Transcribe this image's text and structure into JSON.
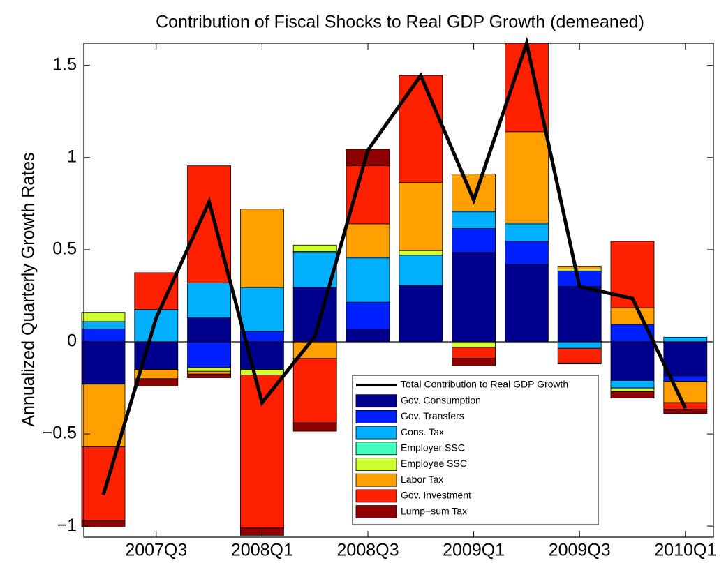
{
  "chart_data": {
    "type": "stacked-bar-line",
    "title": "Contribution of Fiscal Shocks to Real GDP Growth (demeaned)",
    "y_label": "Annualized Quarterly Growth Rates",
    "categories": [
      null,
      "2007Q3",
      null,
      "2008Q1",
      null,
      "2008Q3",
      null,
      "2009Q1",
      null,
      "2009Q3",
      null,
      "2010Q1"
    ],
    "ylim": [
      -1.06,
      1.62
    ],
    "yticks": [
      {
        "value": -1,
        "label": "−1"
      },
      {
        "value": -0.5,
        "label": "−0.5"
      },
      0,
      0.5,
      1,
      1.5
    ],
    "line": {
      "name": "Total Contribution to Real GDP Growth",
      "color": "#000000",
      "values": [
        -0.83,
        0.13,
        0.76,
        -0.33,
        0.03,
        1.04,
        1.445,
        0.77,
        1.62,
        0.3,
        0.235,
        -0.36
      ]
    },
    "series": [
      {
        "name": "Gov. Consumption",
        "color": "#00008f",
        "values": [
          -0.23,
          -0.15,
          0.13,
          -0.15,
          0.295,
          0.065,
          0.305,
          0.485,
          0.42,
          0.3,
          -0.21,
          -0.185
        ]
      },
      {
        "name": "Gov. Transfers",
        "color": "#0020ff",
        "values": [
          0.07,
          0,
          -0.14,
          0.055,
          0,
          0.15,
          0,
          0.13,
          0.125,
          0.085,
          0.095,
          -0.03
        ]
      },
      {
        "name": "Cons. Tax",
        "color": "#00b0ff",
        "values": [
          0.04,
          0.175,
          0.19,
          0.24,
          0.19,
          0.24,
          0.165,
          0.09,
          0.095,
          -0.035,
          -0.04,
          0.025
        ]
      },
      {
        "name": "Employer SSC",
        "color": "#40ffbf",
        "values": [
          0,
          0,
          0,
          0,
          0.005,
          0.005,
          0,
          0.005,
          0.005,
          0,
          -0.005,
          0
        ]
      },
      {
        "name": "Employee SSC",
        "color": "#cfff30",
        "values": [
          0.05,
          0,
          -0.02,
          -0.03,
          0.035,
          0,
          0.025,
          -0.03,
          0,
          0.01,
          -0.015,
          0
        ]
      },
      {
        "name": "Labor Tax",
        "color": "#ff9f00",
        "values": [
          -0.34,
          -0.05,
          -0.015,
          0.425,
          -0.09,
          0.18,
          0.37,
          0.2,
          0.495,
          0.015,
          0.09,
          -0.115
        ]
      },
      {
        "name": "Gov. Investment",
        "color": "#ff2000",
        "values": [
          -0.4,
          0.2,
          0.635,
          -0.83,
          -0.35,
          0.315,
          0.58,
          -0.06,
          0.48,
          -0.08,
          0.36,
          -0.035
        ]
      },
      {
        "name": "Lump−sum Tax",
        "color": "#8f0000",
        "values": [
          -0.035,
          -0.04,
          -0.02,
          -0.04,
          -0.045,
          0.09,
          0,
          -0.04,
          0,
          -0.005,
          -0.035,
          -0.025
        ]
      }
    ]
  }
}
